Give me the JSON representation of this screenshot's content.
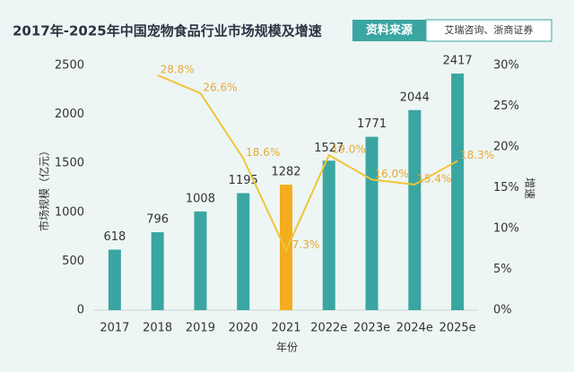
{
  "chart_data": {
    "type": "bar",
    "title": "2017年-2025年中国宠物食品行业市场规模及增速",
    "source": {
      "label": "资料来源",
      "text": "艾瑞咨询、浙商证券"
    },
    "x_label": "年份",
    "y_label": "市场规模（亿元）",
    "y2_label": "增速",
    "categories": [
      "2017",
      "2018",
      "2019",
      "2020",
      "2021",
      "2022e",
      "2023e",
      "2024e",
      "2025e"
    ],
    "ylim": [
      0,
      2500
    ],
    "yticks": [
      0,
      500,
      1000,
      1500,
      2000,
      2500
    ],
    "y2lim": [
      0,
      30
    ],
    "y2ticks": [
      {
        "value": 0,
        "label": "0%"
      },
      {
        "value": 5,
        "label": "5%"
      },
      {
        "value": 10,
        "label": "10%"
      },
      {
        "value": 15,
        "label": "15%"
      },
      {
        "value": 20,
        "label": "20%"
      },
      {
        "value": 25,
        "label": "25%"
      },
      {
        "value": 30,
        "label": "30%"
      }
    ],
    "series": [
      {
        "type": "bar",
        "colors": [
          "#3aa6a1",
          "#3aa6a1",
          "#3aa6a1",
          "#3aa6a1",
          "#f4ad1f",
          "#3aa6a1",
          "#3aa6a1",
          "#3aa6a1",
          "#3aa6a1"
        ],
        "values": [
          618,
          796,
          1008,
          1195,
          1282,
          1527,
          1771,
          2044,
          2417
        ]
      },
      {
        "type": "line",
        "axis": "y2",
        "color": "#f0c43a",
        "values": [
          null,
          28.8,
          26.6,
          18.6,
          7.3,
          19.0,
          16.0,
          15.4,
          18.3
        ],
        "value_labels": [
          null,
          "28.8%",
          "26.6%",
          "18.6%",
          "7.3%",
          "19.0%",
          "16.0%",
          "15.4%",
          "18.3%"
        ]
      }
    ]
  }
}
